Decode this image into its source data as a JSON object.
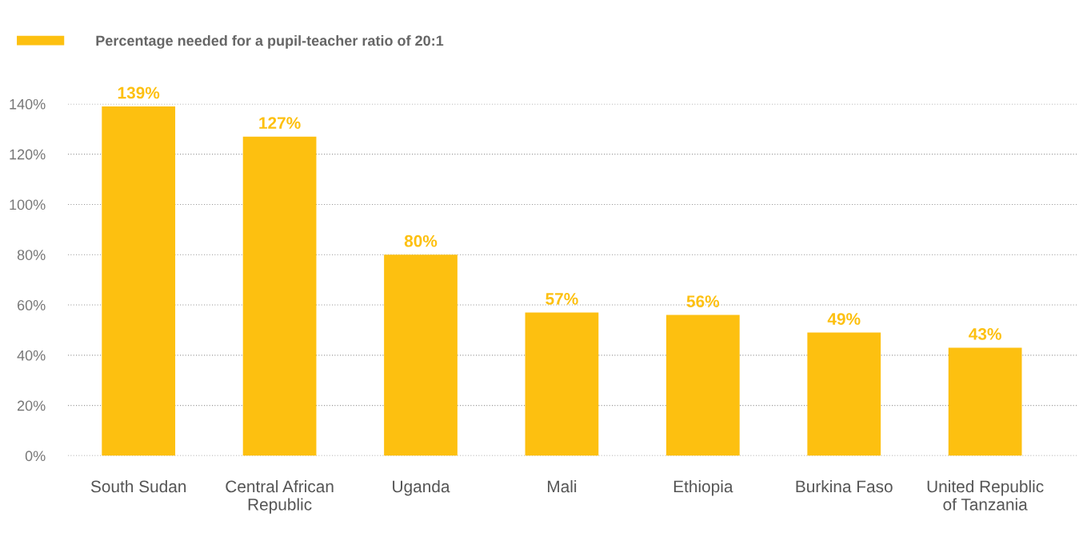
{
  "chart_data": {
    "type": "bar",
    "categories": [
      "South Sudan",
      "Central African\nRepublic",
      "Uganda",
      "Mali",
      "Ethiopia",
      "Burkina Faso",
      "United Republic\nof Tanzania"
    ],
    "series": [
      {
        "name": "Percentage needed for a pupil-teacher ratio of 20:1",
        "color": "#fdc010",
        "values": [
          139,
          127,
          80,
          57,
          56,
          49,
          43
        ],
        "value_labels": [
          "139%",
          "127%",
          "80%",
          "57%",
          "56%",
          "49%",
          "43%"
        ]
      }
    ],
    "ylim": [
      0,
      140
    ],
    "yticks": [
      {
        "value": 0,
        "label": "0%"
      },
      {
        "value": 20,
        "label": "20%"
      },
      {
        "value": 40,
        "label": "40%"
      },
      {
        "value": 60,
        "label": "60%"
      },
      {
        "value": 80,
        "label": "80%"
      },
      {
        "value": 100,
        "label": "100%"
      },
      {
        "value": 120,
        "label": "120%"
      },
      {
        "value": 140,
        "label": "140%"
      }
    ],
    "grid": "y",
    "legend": "top left"
  }
}
